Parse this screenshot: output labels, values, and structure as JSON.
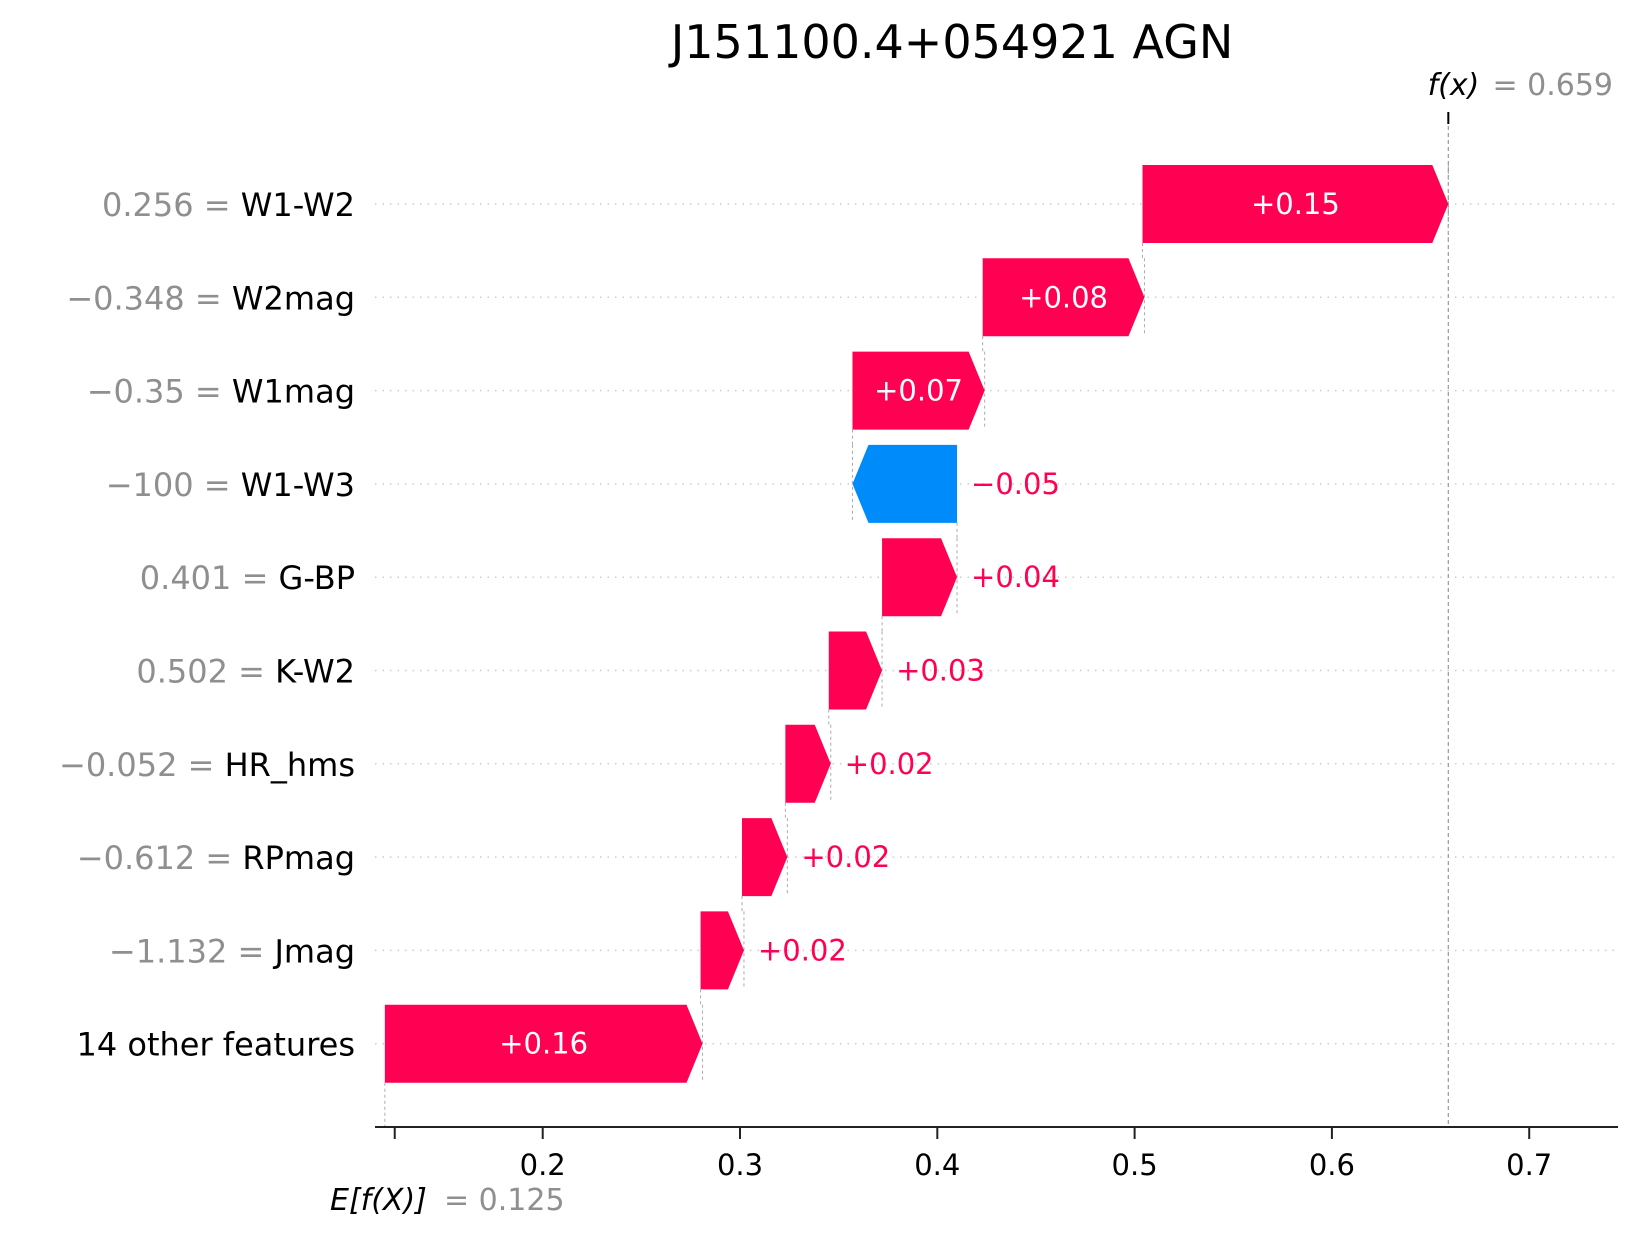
{
  "chart_data": {
    "type": "waterfall",
    "title": "J151100.4+054921 AGN",
    "base_value": 0.125,
    "base_label_prefix": "E[f(X)]",
    "base_value_text": "= 0.125",
    "output_value": 0.659,
    "output_label_prefix": "f(x)",
    "output_value_text": "= 0.659",
    "xlim": [
      0.115,
      0.745
    ],
    "xticks": [
      0.2,
      0.3,
      0.4,
      0.5,
      0.6,
      0.7
    ],
    "xtick_labels": [
      "0.2",
      "0.3",
      "0.4",
      "0.5",
      "0.6",
      "0.7"
    ],
    "colors": {
      "positive": "#ff0052",
      "negative": "#008bfb"
    },
    "features": [
      {
        "value_text": "0.256",
        "name": "W1-W2",
        "start": 0.504,
        "end": 0.659,
        "label": "+0.15"
      },
      {
        "value_text": "−0.348",
        "name": "W2mag",
        "start": 0.423,
        "end": 0.505,
        "label": "+0.08"
      },
      {
        "value_text": "−0.35",
        "name": "W1mag",
        "start": 0.357,
        "end": 0.424,
        "label": "+0.07"
      },
      {
        "value_text": "−100",
        "name": "W1-W3",
        "start": 0.41,
        "end": 0.357,
        "label": "−0.05"
      },
      {
        "value_text": "0.401",
        "name": "G-BP",
        "start": 0.372,
        "end": 0.41,
        "label": "+0.04"
      },
      {
        "value_text": "0.502",
        "name": "K-W2",
        "start": 0.345,
        "end": 0.372,
        "label": "+0.03"
      },
      {
        "value_text": "−0.052",
        "name": "HR_hms",
        "start": 0.323,
        "end": 0.346,
        "label": "+0.02"
      },
      {
        "value_text": "−0.612",
        "name": "RPmag",
        "start": 0.301,
        "end": 0.324,
        "label": "+0.02"
      },
      {
        "value_text": "−1.132",
        "name": "Jmag",
        "start": 0.28,
        "end": 0.302,
        "label": "+0.02"
      },
      {
        "value_text": "",
        "name": "14 other features",
        "start": 0.12,
        "end": 0.281,
        "label": "+0.16"
      }
    ]
  }
}
